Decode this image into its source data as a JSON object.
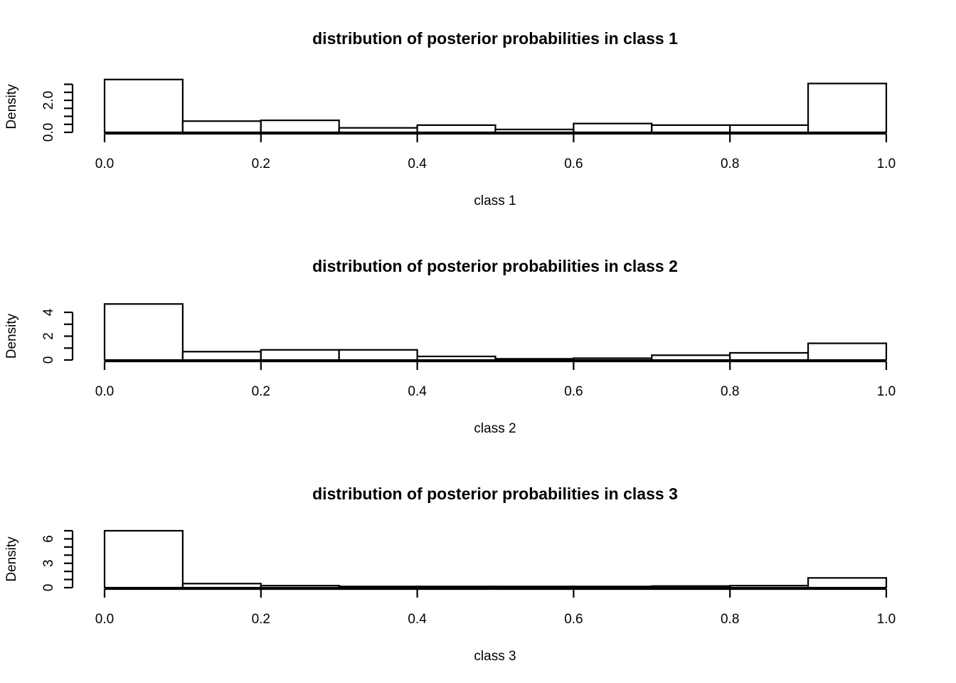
{
  "chart_data": [
    {
      "type": "bar",
      "title": "distribution of posterior probabilities in class 1",
      "xlabel": "class 1",
      "ylabel": "Density",
      "bin_edges": [
        0.0,
        0.1,
        0.2,
        0.3,
        0.4,
        0.5,
        0.6,
        0.7,
        0.8,
        0.9,
        1.0
      ],
      "values": [
        3.3,
        0.7,
        0.75,
        0.28,
        0.45,
        0.18,
        0.55,
        0.45,
        0.45,
        3.05
      ],
      "xticks": [
        "0.0",
        "0.2",
        "0.4",
        "0.6",
        "0.8",
        "1.0"
      ],
      "yticks": [
        "0.0",
        "2.0"
      ],
      "yticks_minor": [
        0.0,
        0.5,
        1.0,
        1.5,
        2.0,
        2.5,
        3.0
      ],
      "ylim": [
        0,
        3.2
      ],
      "xlim": [
        0,
        1
      ]
    },
    {
      "type": "bar",
      "title": "distribution of posterior probabilities in class 2",
      "xlabel": "class 2",
      "ylabel": "Density",
      "bin_edges": [
        0.0,
        0.1,
        0.2,
        0.3,
        0.4,
        0.5,
        0.6,
        0.7,
        0.8,
        0.9,
        1.0
      ],
      "values": [
        4.7,
        0.7,
        0.85,
        0.85,
        0.3,
        0.1,
        0.15,
        0.4,
        0.6,
        1.4
      ],
      "xticks": [
        "0.0",
        "0.2",
        "0.4",
        "0.6",
        "0.8",
        "1.0"
      ],
      "yticks": [
        "0",
        "2",
        "4"
      ],
      "yticks_minor": [
        0,
        1,
        2,
        3,
        4
      ],
      "ylim": [
        0,
        4
      ],
      "xlim": [
        0,
        1
      ]
    },
    {
      "type": "bar",
      "title": "distribution of posterior probabilities in class 3",
      "xlabel": "class 3",
      "ylabel": "Density",
      "bin_edges": [
        0.0,
        0.1,
        0.2,
        0.3,
        0.4,
        0.5,
        0.6,
        0.7,
        0.8,
        0.9,
        1.0
      ],
      "values": [
        7.0,
        0.5,
        0.25,
        0.15,
        0.15,
        0.15,
        0.15,
        0.2,
        0.25,
        1.2
      ],
      "xticks": [
        "0.0",
        "0.2",
        "0.4",
        "0.6",
        "0.8",
        "1.0"
      ],
      "yticks": [
        "0",
        "3",
        "6"
      ],
      "yticks_minor": [
        0,
        1,
        2,
        3,
        4,
        5,
        6,
        7
      ],
      "ylim": [
        0,
        7
      ],
      "xlim": [
        0,
        1
      ]
    }
  ]
}
